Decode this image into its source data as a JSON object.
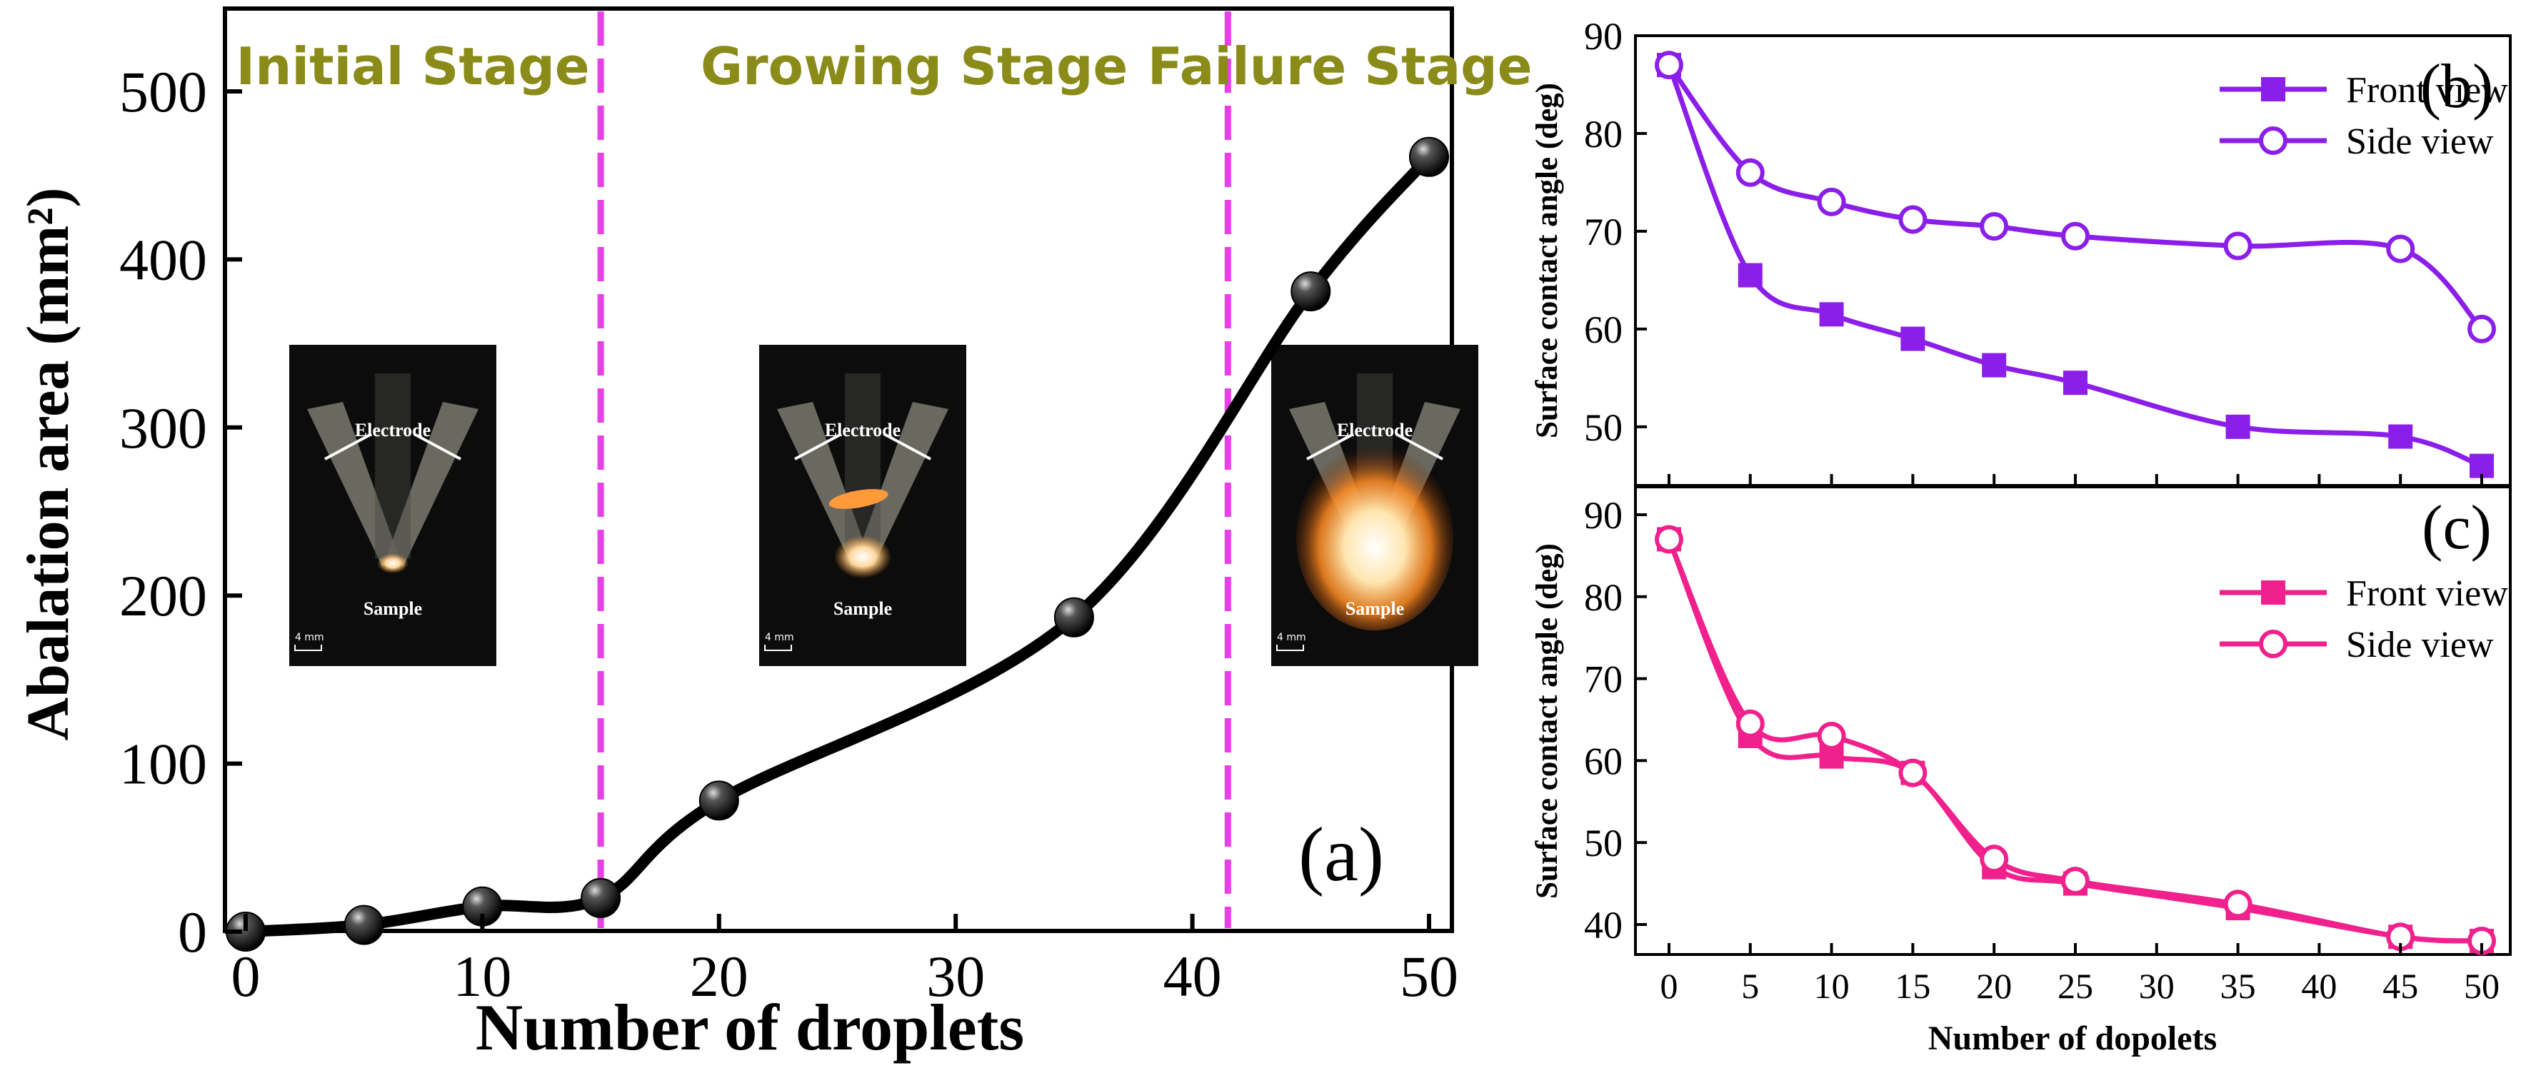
{
  "chart_data": [
    {
      "id": "a",
      "type": "line",
      "panel_label": "(a)",
      "xlabel": "Number of droplets",
      "ylabel": "Abalation area (mm²)",
      "xlim": [
        -1,
        57
      ],
      "ylim": [
        -10,
        550
      ],
      "xticks": [
        0,
        10,
        20,
        30,
        40,
        50
      ],
      "yticks": [
        0,
        100,
        200,
        300,
        400,
        500
      ],
      "series": [
        {
          "x": [
            0,
            5,
            10,
            15,
            20,
            35,
            45,
            50
          ],
          "y": [
            0,
            4,
            15,
            20,
            78,
            187,
            381,
            461
          ],
          "color": "#000000",
          "marker": "sphere"
        }
      ],
      "stages": [
        {
          "label": "Initial Stage",
          "color": "#8b8b1a"
        },
        {
          "label": "Growing Stage",
          "color": "#8b8b1a"
        },
        {
          "label": "Failure Stage",
          "color": "#8b8b1a"
        }
      ],
      "stage_dividers_x": [
        15,
        41.5
      ],
      "divider_color": "#e83fe8",
      "insets": [
        {
          "electrode_label": "Electrode",
          "sample_label": "Sample",
          "scale_label": "4 mm",
          "glow": "small"
        },
        {
          "electrode_label": "Electrode",
          "sample_label": "Sample",
          "scale_label": "4 mm",
          "glow": "medium"
        },
        {
          "electrode_label": "Electrode",
          "sample_label": "Sample",
          "scale_label": "4 mm",
          "glow": "large"
        }
      ]
    },
    {
      "id": "b",
      "type": "line",
      "panel_label": "(b)",
      "ylabel": "Surface contact angle (deg)",
      "ylim": [
        44,
        90
      ],
      "yticks": [
        50,
        60,
        70,
        80,
        90
      ],
      "x": [
        0,
        5,
        10,
        15,
        20,
        25,
        35,
        45,
        50
      ],
      "color": "#8b1ee8",
      "series": [
        {
          "name": "Front view",
          "marker": "square",
          "values": [
            87,
            65.5,
            61.5,
            59,
            56.3,
            54.5,
            50,
            49,
            46
          ]
        },
        {
          "name": "Side view",
          "marker": "circle",
          "values": [
            87,
            76,
            73,
            71.2,
            70.5,
            69.5,
            68.5,
            68.2,
            60
          ]
        }
      ]
    },
    {
      "id": "c",
      "type": "line",
      "panel_label": "(c)",
      "ylabel": "Surface contact angle (deg)",
      "xlabel": "Number of  dopolets",
      "ylim": [
        34,
        90
      ],
      "yticks": [
        40,
        50,
        60,
        70,
        80,
        90
      ],
      "xticks": [
        0,
        5,
        10,
        15,
        20,
        25,
        30,
        35,
        40,
        45,
        50
      ],
      "x": [
        0,
        5,
        10,
        15,
        20,
        25,
        35,
        45,
        50
      ],
      "color": "#f0208c",
      "series": [
        {
          "name": "Front view",
          "marker": "square",
          "values": [
            87,
            63,
            60.5,
            58.5,
            47,
            45,
            42,
            38.5,
            38
          ]
        },
        {
          "name": "Side view",
          "marker": "circle",
          "values": [
            87,
            64.5,
            63,
            58.5,
            48,
            45.3,
            42.5,
            38.5,
            38
          ]
        }
      ]
    }
  ]
}
